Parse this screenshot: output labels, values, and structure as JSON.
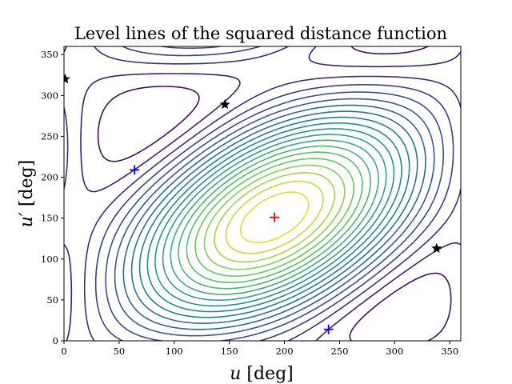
{
  "chart_data": {
    "type": "contour",
    "title": "Level lines of the squared distance function",
    "xlabel": "u [deg]",
    "ylabel": "u′ [deg]",
    "xlim": [
      0,
      360
    ],
    "ylim": [
      0,
      360
    ],
    "xticks": [
      0,
      50,
      100,
      150,
      200,
      250,
      300,
      350
    ],
    "yticks": [
      0,
      50,
      100,
      150,
      200,
      250,
      300,
      350
    ],
    "colormap": [
      "#440154",
      "#3b528b",
      "#21918c",
      "#5ec962",
      "#fde725"
    ],
    "contour_levels": 20,
    "minimum": {
      "u": 191,
      "u_prime": 151,
      "marker": "plus",
      "color": "#ff0000"
    },
    "saddle_points": [
      {
        "u": 64,
        "u_prime": 209,
        "marker": "plus",
        "color": "#0000ff"
      },
      {
        "u": 240,
        "u_prime": 14,
        "marker": "plus",
        "color": "#0000ff"
      }
    ],
    "maxima": [
      {
        "u": 1,
        "u_prime": 320,
        "marker": "star",
        "color": "#000000"
      },
      {
        "u": 146,
        "u_prime": 289,
        "marker": "star",
        "color": "#000000"
      },
      {
        "u": 338,
        "u_prime": 113,
        "marker": "star",
        "color": "#000000"
      }
    ],
    "grid": false
  }
}
